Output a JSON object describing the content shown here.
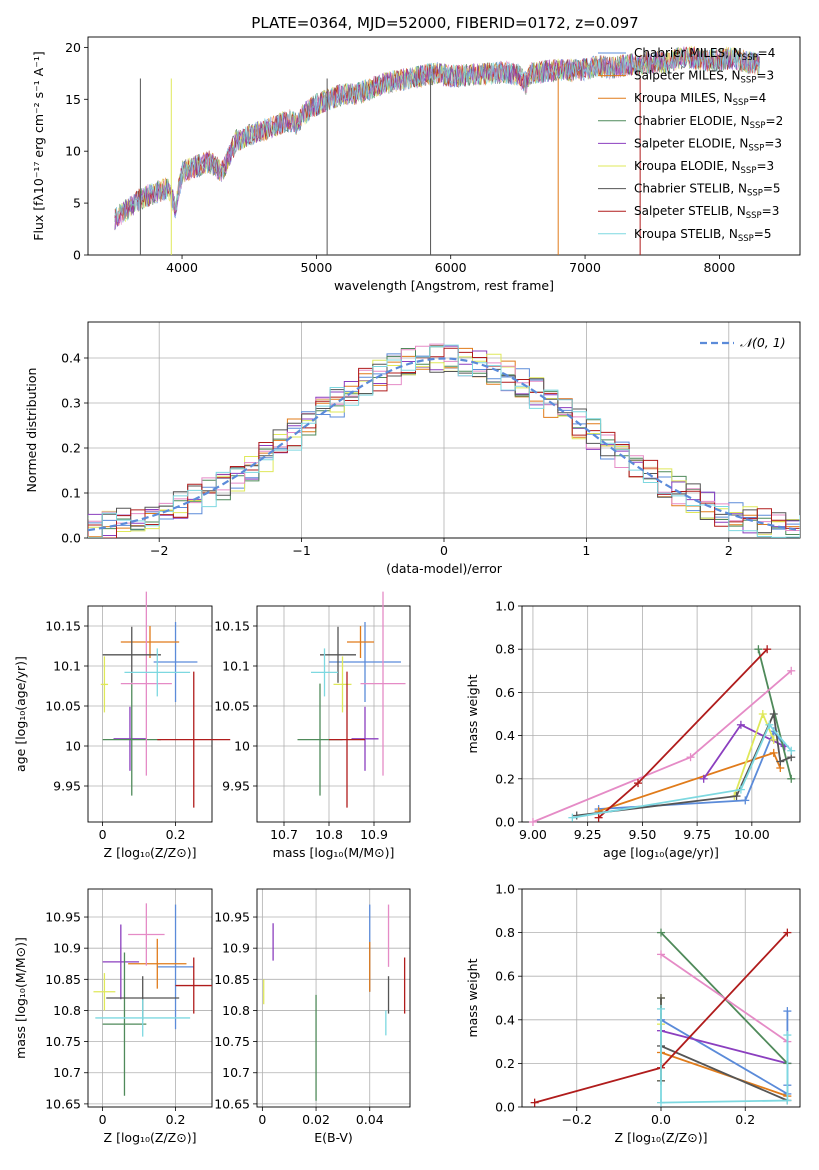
{
  "figure": {
    "title": "PLATE=0364, MJD=52000, FIBERID=0172, z=0.097"
  },
  "colors": [
    "#5b8bd9",
    "#e07b1a",
    "#8b3fbf",
    "#4f8a5a",
    "#dfe85a",
    "#e58bc6",
    "#555555",
    "#b01c1c",
    "#7dd8e0"
  ],
  "chart_data": [
    {
      "id": "spectrum",
      "type": "line",
      "title": "PLATE=0364, MJD=52000, FIBERID=0172, z=0.097",
      "xlabel": "wavelength [Angstrom, rest frame]",
      "ylabel": "Flux [fλ10⁻¹⁷ erg cm⁻² s⁻¹ A⁻¹]",
      "xlim": [
        3300,
        8600
      ],
      "ylim": [
        0,
        21
      ],
      "xticks": [
        4000,
        5000,
        6000,
        7000,
        8000
      ],
      "yticks": [
        0,
        5,
        10,
        15,
        20
      ],
      "legend_position": "right",
      "grid": false,
      "x": [
        3500,
        3600,
        3700,
        3800,
        3900,
        3950,
        4000,
        4100,
        4200,
        4300,
        4400,
        4500,
        4600,
        4700,
        4800,
        4860,
        4900,
        5000,
        5100,
        5200,
        5300,
        5400,
        5500,
        5600,
        5700,
        5800,
        5900,
        6000,
        6100,
        6200,
        6300,
        6400,
        6500,
        6560,
        6600,
        6700,
        6800,
        6900,
        7000,
        7100,
        7200,
        7300,
        7400,
        7500,
        7600,
        7700,
        7800,
        7900,
        8000,
        8100,
        8200,
        8300
      ],
      "y": [
        3.5,
        4.5,
        5.5,
        6,
        6.5,
        4.5,
        8,
        8.5,
        9,
        8,
        11,
        11.5,
        12,
        12.5,
        13,
        12.5,
        13.5,
        14.5,
        15,
        15.5,
        15.5,
        16,
        16.5,
        16.8,
        17,
        17.3,
        17.5,
        17.2,
        17.3,
        17.4,
        17.5,
        17.6,
        17.4,
        16.5,
        17.5,
        17.7,
        17.8,
        17.8,
        17.9,
        18.2,
        18,
        18.3,
        18.4,
        18.6,
        18.5,
        19,
        19,
        18.7,
        18.8,
        19,
        18.6,
        18.4
      ],
      "series": [
        {
          "name": "Chabrier MILES, N",
          "sub": "SSP",
          "suffix": "=4",
          "color": "#5b8bd9"
        },
        {
          "name": "Salpeter MILES, N",
          "sub": "SSP",
          "suffix": "=3",
          "color": "#e07b1a"
        },
        {
          "name": "Kroupa MILES, N",
          "sub": "SSP",
          "suffix": "=4",
          "color": "#e07b1a"
        },
        {
          "name": "Chabrier ELODIE, N",
          "sub": "SSP",
          "suffix": "=2",
          "color": "#4f8a5a"
        },
        {
          "name": "Salpeter ELODIE, N",
          "sub": "SSP",
          "suffix": "=3",
          "color": "#8b3fbf"
        },
        {
          "name": "Kroupa ELODIE, N",
          "sub": "SSP",
          "suffix": "=3",
          "color": "#dfe85a"
        },
        {
          "name": "Chabrier STELIB, N",
          "sub": "SSP",
          "suffix": "=5",
          "color": "#555555"
        },
        {
          "name": "Salpeter STELIB, N",
          "sub": "SSP",
          "suffix": "=3",
          "color": "#b01c1c"
        },
        {
          "name": "Kroupa STELIB, N",
          "sub": "SSP",
          "suffix": "=5",
          "color": "#7dd8e0"
        }
      ]
    },
    {
      "id": "residuals",
      "type": "histogram",
      "xlabel": "(data-model)/error",
      "ylabel": "Normed distribution",
      "xlim": [
        -2.5,
        2.5
      ],
      "ylim": [
        0,
        0.48
      ],
      "xticks": [
        -2,
        -1,
        0,
        1,
        2
      ],
      "yticks": [
        0.0,
        0.1,
        0.2,
        0.3,
        0.4
      ],
      "grid": true,
      "legend_position": "top-right",
      "legend": {
        "label": "𝒩(0, 1)",
        "color": "#5b8bd9",
        "style": "dashed"
      },
      "bin_width": 0.1,
      "reference_curve": "normal(0,1)"
    },
    {
      "id": "age-vs-Z",
      "type": "errorbar",
      "xlabel": "Z [log₁₀(Z/Z⊙)]",
      "ylabel": "age  [log₁₀(age/yr)]",
      "xlim": [
        -0.04,
        0.3
      ],
      "ylim": [
        9.905,
        10.175
      ],
      "xticks": [
        0.0,
        0.2
      ],
      "yticks": [
        9.95,
        10.0,
        10.05,
        10.1,
        10.15
      ],
      "grid": true,
      "points": [
        {
          "x": 0.2,
          "xerr": 0.06,
          "y": 10.105,
          "yerr": 0.05,
          "color": "#5b8bd9"
        },
        {
          "x": 0.13,
          "xerr": 0.08,
          "y": 10.13,
          "yerr": 0.02,
          "color": "#e07b1a"
        },
        {
          "x": 0.075,
          "xerr": 0.045,
          "y": 10.009,
          "yerr": 0.04,
          "color": "#8b3fbf"
        },
        {
          "x": 0.08,
          "xerr": 0.08,
          "y": 10.008,
          "yerr": 0.07,
          "color": "#4f8a5a"
        },
        {
          "x": 0.005,
          "xerr": 0.01,
          "y": 10.077,
          "yerr": 0.035,
          "color": "#dfe85a"
        },
        {
          "x": 0.12,
          "xerr": 0.07,
          "y": 10.078,
          "yerr": 0.115,
          "color": "#e58bc6"
        },
        {
          "x": 0.08,
          "xerr": 0.08,
          "y": 10.114,
          "yerr": 0.035,
          "color": "#555555"
        },
        {
          "x": 0.25,
          "xerr": 0.1,
          "y": 10.008,
          "yerr": 0.085,
          "color": "#b01c1c"
        },
        {
          "x": 0.15,
          "xerr": 0.09,
          "y": 10.092,
          "yerr": 0.03,
          "color": "#7dd8e0"
        }
      ]
    },
    {
      "id": "age-vs-mass",
      "type": "errorbar",
      "xlabel": "mass [log₁₀(M/M⊙)]",
      "ylabel": "",
      "xlim": [
        10.64,
        10.98
      ],
      "ylim": [
        9.905,
        10.175
      ],
      "xticks": [
        10.7,
        10.8,
        10.9
      ],
      "yticks": [
        9.95,
        10.0,
        10.05,
        10.1,
        10.15
      ],
      "grid": true,
      "points": [
        {
          "x": 10.88,
          "xerr": 0.08,
          "y": 10.105,
          "yerr": 0.05,
          "color": "#5b8bd9"
        },
        {
          "x": 10.87,
          "xerr": 0.03,
          "y": 10.13,
          "yerr": 0.02,
          "color": "#e07b1a"
        },
        {
          "x": 10.88,
          "xerr": 0.03,
          "y": 10.009,
          "yerr": 0.04,
          "color": "#8b3fbf"
        },
        {
          "x": 10.78,
          "xerr": 0.05,
          "y": 10.008,
          "yerr": 0.07,
          "color": "#4f8a5a"
        },
        {
          "x": 10.83,
          "xerr": 0.02,
          "y": 10.077,
          "yerr": 0.035,
          "color": "#dfe85a"
        },
        {
          "x": 10.92,
          "xerr": 0.05,
          "y": 10.078,
          "yerr": 0.115,
          "color": "#e58bc6"
        },
        {
          "x": 10.82,
          "xerr": 0.04,
          "y": 10.114,
          "yerr": 0.035,
          "color": "#555555"
        },
        {
          "x": 10.84,
          "xerr": 0.04,
          "y": 10.008,
          "yerr": 0.085,
          "color": "#b01c1c"
        },
        {
          "x": 10.79,
          "xerr": 0.03,
          "y": 10.092,
          "yerr": 0.03,
          "color": "#7dd8e0"
        }
      ]
    },
    {
      "id": "massweight-vs-age",
      "type": "line",
      "xlabel": "age  [log₁₀(age/yr)]",
      "ylabel": "mass weight",
      "xlim": [
        8.95,
        10.22
      ],
      "ylim": [
        0.0,
        1.0
      ],
      "xticks": [
        9.0,
        9.25,
        9.5,
        9.75,
        10.0
      ],
      "yticks": [
        0.0,
        0.2,
        0.4,
        0.6,
        0.8,
        1.0
      ],
      "grid": true,
      "series": [
        {
          "color": "#5b8bd9",
          "points": [
            [
              9.3,
              0.06
            ],
            [
              9.97,
              0.1
            ],
            [
              10.1,
              0.42
            ],
            [
              10.15,
              0.35
            ]
          ]
        },
        {
          "color": "#e07b1a",
          "points": [
            [
              9.3,
              0.05
            ],
            [
              10.1,
              0.32
            ],
            [
              10.13,
              0.25
            ]
          ]
        },
        {
          "color": "#8b3fbf",
          "points": [
            [
              9.78,
              0.2
            ],
            [
              9.95,
              0.45
            ],
            [
              10.15,
              0.35
            ]
          ]
        },
        {
          "color": "#4f8a5a",
          "points": [
            [
              10.03,
              0.8
            ],
            [
              10.18,
              0.2
            ]
          ]
        },
        {
          "color": "#dfe85a",
          "points": [
            [
              9.92,
              0.12
            ],
            [
              10.05,
              0.5
            ],
            [
              10.1,
              0.38
            ]
          ]
        },
        {
          "color": "#e58bc6",
          "points": [
            [
              9.0,
              0.0
            ],
            [
              9.72,
              0.3
            ],
            [
              10.18,
              0.7
            ]
          ]
        },
        {
          "color": "#555555",
          "points": [
            [
              9.2,
              0.03
            ],
            [
              9.93,
              0.12
            ],
            [
              10.1,
              0.5
            ],
            [
              10.13,
              0.28
            ],
            [
              10.18,
              0.3
            ]
          ]
        },
        {
          "color": "#b01c1c",
          "points": [
            [
              9.3,
              0.02
            ],
            [
              9.48,
              0.18
            ],
            [
              10.07,
              0.8
            ]
          ]
        },
        {
          "color": "#7dd8e0",
          "points": [
            [
              9.18,
              0.02
            ],
            [
              9.95,
              0.15
            ],
            [
              10.08,
              0.45
            ],
            [
              10.18,
              0.33
            ]
          ]
        }
      ]
    },
    {
      "id": "mass-vs-Z",
      "type": "errorbar",
      "xlabel": "Z [log₁₀(Z/Z⊙)]",
      "ylabel": "mass [log₁₀(M/M⊙)]",
      "xlim": [
        -0.04,
        0.3
      ],
      "ylim": [
        10.645,
        10.995
      ],
      "xticks": [
        0.0,
        0.2
      ],
      "yticks": [
        10.65,
        10.7,
        10.75,
        10.8,
        10.85,
        10.9,
        10.95
      ],
      "grid": true,
      "points": [
        {
          "x": 0.2,
          "xerr": 0.05,
          "y": 10.87,
          "yerr": 0.1,
          "color": "#5b8bd9"
        },
        {
          "x": 0.15,
          "xerr": 0.08,
          "y": 10.875,
          "yerr": 0.04,
          "color": "#e07b1a"
        },
        {
          "x": 0.05,
          "xerr": 0.05,
          "y": 10.878,
          "yerr": 0.06,
          "color": "#8b3fbf"
        },
        {
          "x": 0.06,
          "xerr": 0.06,
          "y": 10.778,
          "yerr": 0.115,
          "color": "#4f8a5a"
        },
        {
          "x": 0.005,
          "xerr": 0.03,
          "y": 10.83,
          "yerr": 0.03,
          "color": "#dfe85a"
        },
        {
          "x": 0.12,
          "xerr": 0.05,
          "y": 10.922,
          "yerr": 0.05,
          "color": "#e58bc6"
        },
        {
          "x": 0.11,
          "xerr": 0.1,
          "y": 10.82,
          "yerr": 0.035,
          "color": "#555555"
        },
        {
          "x": 0.25,
          "xerr": 0.05,
          "y": 10.84,
          "yerr": 0.045,
          "color": "#b01c1c"
        },
        {
          "x": 0.11,
          "xerr": 0.13,
          "y": 10.788,
          "yerr": 0.03,
          "color": "#7dd8e0"
        }
      ]
    },
    {
      "id": "mass-vs-EBV",
      "type": "errorbar",
      "xlabel": "E(B-V)",
      "ylabel": "",
      "xlim": [
        -0.002,
        0.055
      ],
      "ylim": [
        10.645,
        10.995
      ],
      "xticks": [
        0.0,
        0.02,
        0.04
      ],
      "yticks": [
        10.65,
        10.7,
        10.75,
        10.8,
        10.85,
        10.9,
        10.95
      ],
      "grid": true,
      "points": [
        {
          "x": 0.04,
          "xerr": 0,
          "y": 10.9,
          "yerr": 0.07,
          "color": "#5b8bd9"
        },
        {
          "x": 0.04,
          "xerr": 0,
          "y": 10.87,
          "yerr": 0.04,
          "color": "#e07b1a"
        },
        {
          "x": 0.004,
          "xerr": 0,
          "y": 10.91,
          "yerr": 0.03,
          "color": "#8b3fbf"
        },
        {
          "x": 0.02,
          "xerr": 0,
          "y": 10.74,
          "yerr": 0.085,
          "color": "#4f8a5a"
        },
        {
          "x": 0.0005,
          "xerr": 0,
          "y": 10.83,
          "yerr": 0.02,
          "color": "#dfe85a"
        },
        {
          "x": 0.047,
          "xerr": 0,
          "y": 10.92,
          "yerr": 0.05,
          "color": "#e58bc6"
        },
        {
          "x": 0.047,
          "xerr": 0,
          "y": 10.825,
          "yerr": 0.03,
          "color": "#555555"
        },
        {
          "x": 0.053,
          "xerr": 0,
          "y": 10.84,
          "yerr": 0.045,
          "color": "#b01c1c"
        },
        {
          "x": 0.046,
          "xerr": 0,
          "y": 10.78,
          "yerr": 0.02,
          "color": "#7dd8e0"
        }
      ]
    },
    {
      "id": "massweight-vs-Z",
      "type": "line",
      "xlabel": "Z [log₁₀(Z/Z⊙)]",
      "ylabel": "mass weight",
      "xlim": [
        -0.33,
        0.33
      ],
      "ylim": [
        0.0,
        1.0
      ],
      "xticks": [
        -0.2,
        0.0,
        0.2
      ],
      "yticks": [
        0.0,
        0.2,
        0.4,
        0.6,
        0.8,
        1.0
      ],
      "grid": true,
      "series": [
        {
          "color": "#5b8bd9",
          "points": [
            [
              0.0,
              0.4
            ],
            [
              0.3,
              0.06
            ],
            [
              0.3,
              0.44
            ],
            [
              0.3,
              0.1
            ]
          ]
        },
        {
          "color": "#e07b1a",
          "points": [
            [
              0.0,
              0.25
            ],
            [
              0.3,
              0.05
            ]
          ]
        },
        {
          "color": "#8b3fbf",
          "points": [
            [
              0.0,
              0.35
            ],
            [
              0.3,
              0.2
            ]
          ]
        },
        {
          "color": "#4f8a5a",
          "points": [
            [
              0.0,
              0.8
            ],
            [
              0.3,
              0.2
            ]
          ]
        },
        {
          "color": "#dfe85a",
          "points": [
            [
              0.0,
              0.5
            ],
            [
              0.0,
              0.12
            ],
            [
              0.0,
              0.38
            ]
          ]
        },
        {
          "color": "#e58bc6",
          "points": [
            [
              0.0,
              0.7
            ],
            [
              0.3,
              0.3
            ]
          ]
        },
        {
          "color": "#555555",
          "points": [
            [
              0.0,
              0.5
            ],
            [
              0.0,
              0.12
            ],
            [
              0.0,
              0.28
            ],
            [
              0.3,
              0.03
            ]
          ]
        },
        {
          "color": "#b01c1c",
          "points": [
            [
              -0.3,
              0.02
            ],
            [
              0.0,
              0.18
            ],
            [
              0.3,
              0.8
            ]
          ]
        },
        {
          "color": "#7dd8e0",
          "points": [
            [
              0.0,
              0.45
            ],
            [
              0.0,
              0.02
            ],
            [
              0.3,
              0.03
            ],
            [
              0.3,
              0.33
            ]
          ]
        }
      ]
    }
  ]
}
